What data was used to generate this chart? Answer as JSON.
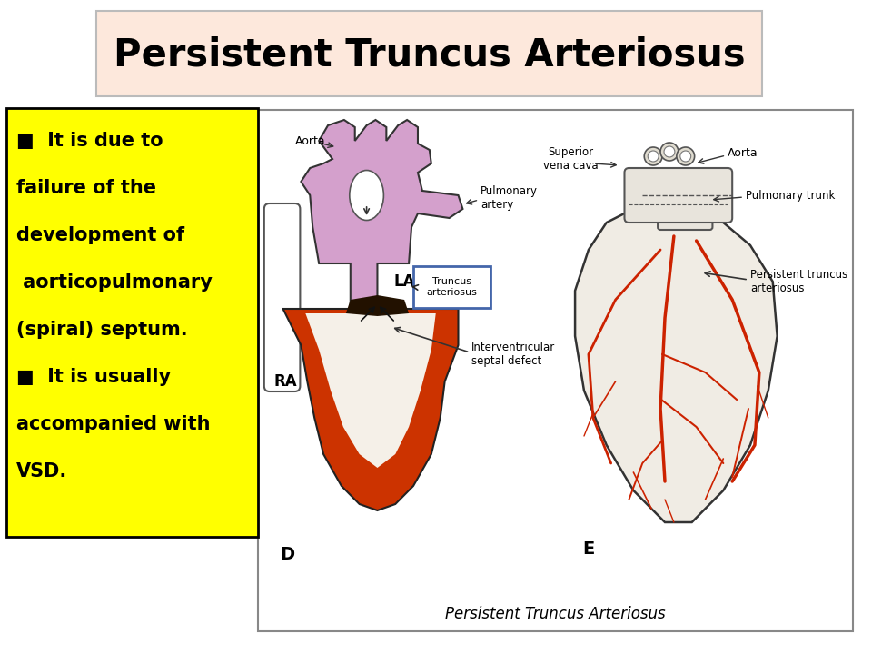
{
  "title": "Persistent Truncus Arteriosus",
  "title_fontsize": 30,
  "title_fontweight": "bold",
  "title_box_color": "#fde8dc",
  "title_box_edge": "#bbbbbb",
  "slide_bg": "#ffffff",
  "yellow_box_color": "#ffff00",
  "yellow_box_edge": "#000000",
  "bullet_lines": [
    [
      "■  It is due to",
      true
    ],
    [
      "failure of the",
      false
    ],
    [
      "development of",
      false
    ],
    [
      " aorticopulmonary",
      false
    ],
    [
      "(spiral) septum.",
      false
    ],
    [
      "■  It is usually",
      true
    ],
    [
      "accompanied with",
      false
    ],
    [
      "VSD.",
      false
    ]
  ],
  "bullet_fontsize": 15,
  "diagram_caption": "Persistent Truncus Arteriosus",
  "pink_color": "#d4a0cc",
  "red_color": "#cc3300",
  "dark_red": "#992200",
  "white": "#ffffff",
  "black": "#000000",
  "gray": "#555555",
  "blue_box": "#4466aa",
  "text_color": "#000000"
}
